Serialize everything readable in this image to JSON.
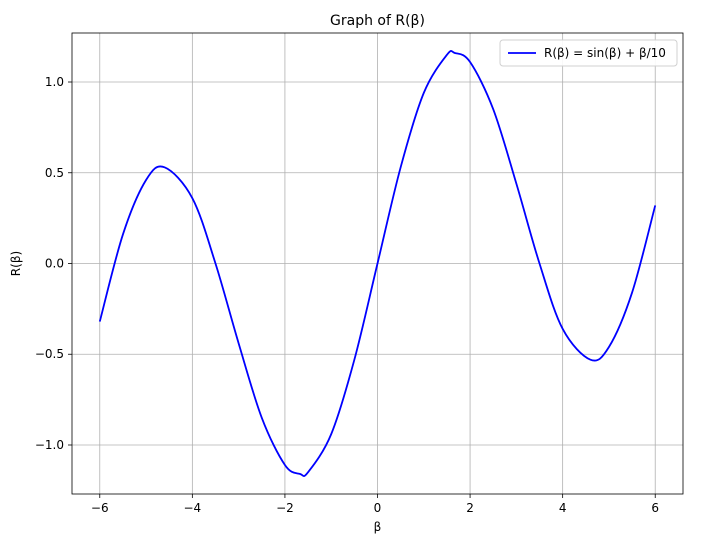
{
  "chart_data": {
    "type": "line",
    "title": "Graph of R(β)",
    "xlabel": "β",
    "ylabel": "R(β)",
    "xlim": [
      -6.6,
      6.6
    ],
    "ylim": [
      -1.27,
      1.27
    ],
    "xticks": [
      -6,
      -4,
      -2,
      0,
      2,
      4,
      6
    ],
    "xtick_labels": [
      "−6",
      "−4",
      "−2",
      "0",
      "2",
      "4",
      "6"
    ],
    "yticks": [
      -1.0,
      -0.5,
      0.0,
      0.5,
      1.0
    ],
    "ytick_labels": [
      "−1.0",
      "−0.5",
      "0.0",
      "0.5",
      "1.0"
    ],
    "grid": true,
    "legend_position": "top-right",
    "series": [
      {
        "name": "R(β) = sin(β) + β/10",
        "color": "#0000ff",
        "x": [
          -6.0,
          -5.5,
          -5.0,
          -4.6,
          -4.0,
          -3.5,
          -3.0,
          -2.5,
          -2.0,
          -1.67,
          -1.5,
          -1.0,
          -0.5,
          0.0,
          0.5,
          1.0,
          1.5,
          1.67,
          2.0,
          2.5,
          3.0,
          3.5,
          4.0,
          4.6,
          5.0,
          5.5,
          6.0
        ],
        "y": [
          -0.32,
          0.16,
          0.46,
          0.53,
          0.36,
          -0.0,
          -0.44,
          -0.85,
          -1.11,
          -1.16,
          -1.15,
          -0.94,
          -0.53,
          0.0,
          0.53,
          0.94,
          1.15,
          1.16,
          1.11,
          0.85,
          0.44,
          0.0,
          -0.36,
          -0.53,
          -0.46,
          -0.16,
          0.32
        ]
      }
    ]
  }
}
